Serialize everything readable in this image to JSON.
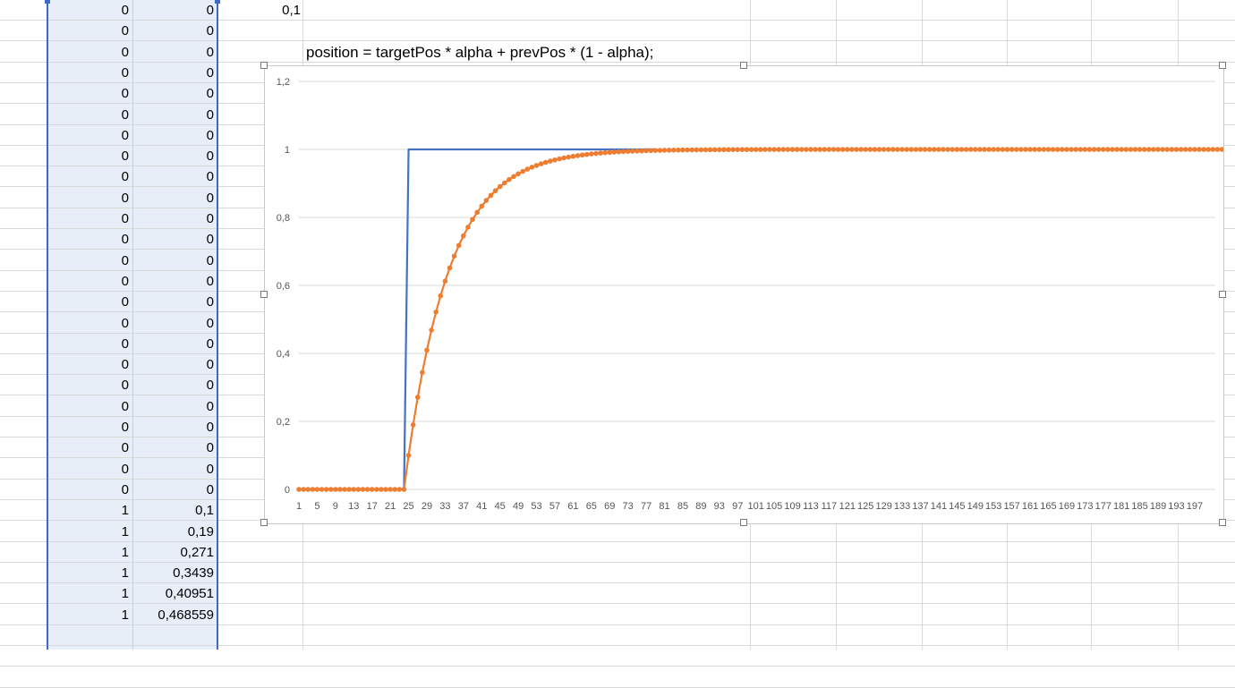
{
  "sheet": {
    "alpha_value": "0,1",
    "formula_text": "position =  targetPos * alpha + prevPos * (1 - alpha);",
    "column_a": [
      "0",
      "0",
      "0",
      "0",
      "0",
      "0",
      "0",
      "0",
      "0",
      "0",
      "0",
      "0",
      "0",
      "0",
      "0",
      "0",
      "0",
      "0",
      "0",
      "0",
      "0",
      "0",
      "0",
      "0",
      "1",
      "1",
      "1",
      "1",
      "1",
      "1"
    ],
    "column_b": [
      "0",
      "0",
      "0",
      "0",
      "0",
      "0",
      "0",
      "0",
      "0",
      "0",
      "0",
      "0",
      "0",
      "0",
      "0",
      "0",
      "0",
      "0",
      "0",
      "0",
      "0",
      "0",
      "0",
      "0",
      "0,1",
      "0,19",
      "0,271",
      "0,3439",
      "0,40951",
      "0,468559"
    ]
  },
  "colors": {
    "target_series": "#4472c4",
    "smoothed_series": "#ed7d31",
    "selection_border": "#3b6bc5",
    "selection_fill": "#e8eef8",
    "gridline": "#d9d9d9"
  },
  "chart_data": {
    "type": "line",
    "title": "",
    "xlabel": "",
    "ylabel": "",
    "ylim": [
      0,
      1.2
    ],
    "y_ticks": [
      "0",
      "0,2",
      "0,4",
      "0,6",
      "0,8",
      "1",
      "1,2"
    ],
    "x_range": [
      1,
      198
    ],
    "x_tick_labels": [
      "1",
      "5",
      "9",
      "13",
      "17",
      "21",
      "25",
      "29",
      "33",
      "37",
      "41",
      "45",
      "49",
      "53",
      "57",
      "61",
      "65",
      "69",
      "73",
      "77",
      "81",
      "85",
      "89",
      "93",
      "97",
      "101",
      "105",
      "109",
      "113",
      "117",
      "121",
      "125",
      "129",
      "133",
      "137",
      "141",
      "145",
      "149",
      "153",
      "157",
      "161",
      "165",
      "169",
      "173",
      "177",
      "181",
      "185",
      "189",
      "193",
      "197"
    ],
    "grid": true,
    "legend": "none",
    "step_index": 25,
    "alpha": 0.1,
    "series": [
      {
        "marker": "line",
        "points_x": [
          1,
          24,
          25,
          79
        ],
        "points_y": [
          0,
          0,
          1,
          1
        ]
      },
      {
        "marker": "dots",
        "values": [
          0,
          0,
          0,
          0,
          0,
          0,
          0,
          0,
          0,
          0,
          0,
          0,
          0,
          0,
          0,
          0,
          0,
          0,
          0,
          0,
          0,
          0,
          0,
          0,
          0.1,
          0.19,
          0.271,
          0.3439,
          0.40951,
          0.468559,
          0.5217,
          0.5695,
          0.6126,
          0.6513,
          0.6862,
          0.7176,
          0.7458,
          0.7712,
          0.7941,
          0.8147,
          0.8332,
          0.8499,
          0.8649,
          0.8784,
          0.8906,
          0.9015,
          0.9114,
          0.9202,
          0.9282,
          0.9354,
          0.9419,
          0.9477,
          0.9529,
          0.9576,
          0.9618,
          0.9657,
          0.9691,
          0.9722,
          0.975,
          0.9775,
          0.9797,
          0.9818,
          0.9836,
          0.9852,
          0.9867,
          0.988,
          0.9892,
          0.9903,
          0.9913,
          0.9921,
          0.9929,
          0.9936,
          0.9943,
          0.9948,
          0.9953,
          0.9958,
          0.9962,
          0.9966,
          0.997,
          0.9973,
          0.9975,
          0.9978,
          0.998,
          0.9982,
          0.9984,
          0.9985,
          0.9987,
          0.9988,
          0.9989,
          0.999,
          0.9991,
          0.9992,
          0.9993,
          0.9994,
          0.9994,
          0.9995,
          0.9995,
          0.9996,
          0.9996,
          0.9997,
          0.9997,
          0.9997,
          0.9998,
          0.9998,
          0.9998,
          0.9998,
          0.9998,
          0.9999,
          0.9999,
          0.9999,
          0.9999,
          0.9999,
          0.9999,
          0.9999,
          0.9999,
          1,
          1,
          1,
          1,
          1,
          1,
          1,
          1,
          1,
          1,
          1,
          1,
          1,
          1,
          1,
          1,
          1,
          1,
          1,
          1,
          1,
          1,
          1,
          1,
          1,
          1,
          1,
          1,
          1,
          1,
          1,
          1,
          1,
          1,
          1,
          1,
          1,
          1,
          1,
          1,
          1,
          1,
          1,
          1,
          1,
          1,
          1,
          1,
          1,
          1,
          1,
          1,
          1,
          1,
          1,
          1,
          1,
          1,
          1,
          1,
          1,
          1,
          1,
          1,
          1,
          1,
          1,
          1,
          1,
          1,
          1,
          1,
          1,
          1,
          1,
          1,
          1,
          1,
          1,
          1,
          1,
          1,
          1,
          1,
          1,
          1,
          1,
          1,
          1,
          1,
          1,
          1,
          1,
          1,
          1,
          1,
          1,
          1,
          1,
          1
        ]
      }
    ]
  }
}
